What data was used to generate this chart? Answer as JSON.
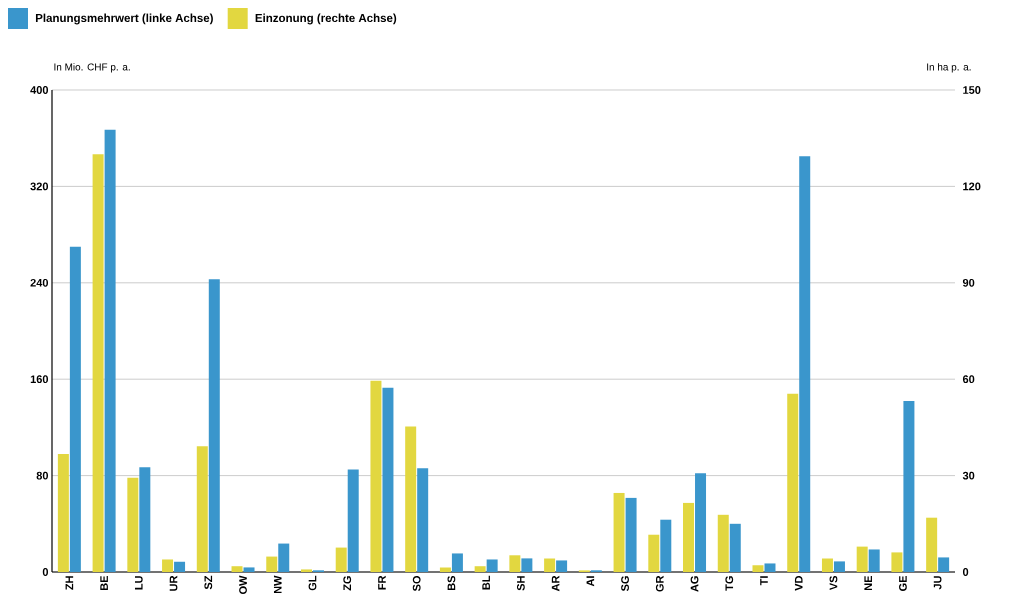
{
  "chart_data": {
    "type": "bar",
    "categories": [
      "ZH",
      "BE",
      "LU",
      "UR",
      "SZ",
      "OW",
      "NW",
      "GL",
      "ZG",
      "FR",
      "SO",
      "BS",
      "BL",
      "SH",
      "AR",
      "AI",
      "SG",
      "GR",
      "AG",
      "TG",
      "TI",
      "VD",
      "VS",
      "NE",
      "GE",
      "JU"
    ],
    "series": [
      {
        "name": "Planungsmehrwert (linke Achse)",
        "color": "#3a96cc",
        "values": [
          270,
          367,
          87,
          8.5,
          243,
          3.8,
          23.6,
          1.4,
          85,
          153,
          86,
          15.4,
          10.4,
          11.3,
          9.6,
          1.4,
          61.5,
          43.4,
          82,
          40,
          7.1,
          345,
          8.8,
          18.7,
          142,
          12.1
        ]
      },
      {
        "name": "Einzonung (rechte Achse)",
        "color": "#e2d740",
        "axis": "y2",
        "values": [
          36.7,
          130,
          29.3,
          3.9,
          39.1,
          1.8,
          4.8,
          0.8,
          7.6,
          59.5,
          45.3,
          1.4,
          1.8,
          5.2,
          4.2,
          0.5,
          24.6,
          11.6,
          21.5,
          17.8,
          2.1,
          55.5,
          4.2,
          7.9,
          6.1,
          16.9
        ]
      }
    ],
    "ylabel": "In Mio. CHF p. a.",
    "y2label": "In ha p. a.",
    "ylim": [
      0,
      400
    ],
    "yticks": [
      0,
      80,
      160,
      240,
      320,
      400
    ],
    "y2lim": [
      0,
      150
    ],
    "y2ticks": [
      0,
      30,
      60,
      90,
      120,
      150
    ],
    "grid": "y",
    "legend": "top left"
  }
}
